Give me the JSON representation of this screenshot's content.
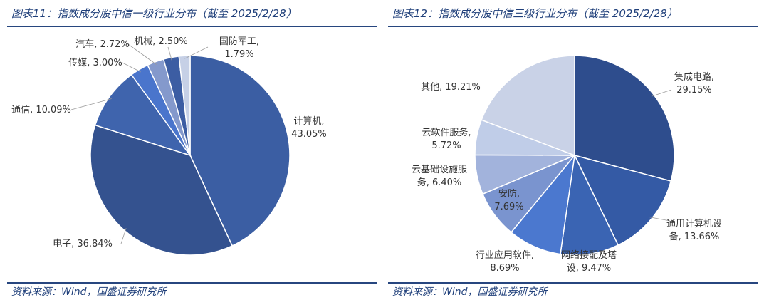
{
  "chart_data": [
    {
      "type": "pie",
      "title": "图表11：指数成分股中信一级行业分布（截至 2025/2/28）",
      "source": "资料来源：Wind，国盛证券研究所",
      "slices": [
        {
          "label": "计算机",
          "value": 43.05,
          "display": "计算机,\n43.05%",
          "color": "#3b5ea3"
        },
        {
          "label": "电子",
          "value": 36.84,
          "display": "电子, 36.84%",
          "color": "#34528f"
        },
        {
          "label": "通信",
          "value": 10.09,
          "display": "通信, 10.09%",
          "color": "#3f64ad"
        },
        {
          "label": "传媒",
          "value": 3.0,
          "display": "传媒, 3.00%",
          "color": "#4a75cc"
        },
        {
          "label": "汽车",
          "value": 2.72,
          "display": "汽车, 2.72%",
          "color": "#8499cc"
        },
        {
          "label": "机械",
          "value": 2.5,
          "display": "机械, 2.50%",
          "color": "#3c5da3"
        },
        {
          "label": "国防军工",
          "value": 1.79,
          "display": "国防军工,\n1.79%",
          "color": "#c6d0e6"
        }
      ]
    },
    {
      "type": "pie",
      "title": "图表12：指数成分股中信三级行业分布（截至 2025/2/28）",
      "source": "资料来源：Wind，国盛证券研究所",
      "slices": [
        {
          "label": "集成电路",
          "value": 29.15,
          "display": "集成电路,\n29.15%",
          "color": "#2e4d8d"
        },
        {
          "label": "通用计算机设备",
          "value": 13.66,
          "display": "通用计算机设\n备, 13.66%",
          "color": "#345aa5"
        },
        {
          "label": "网络接配及塔设",
          "value": 9.47,
          "display": "网络接配及塔\n设, 9.47%",
          "color": "#3a64b3"
        },
        {
          "label": "行业应用软件",
          "value": 8.69,
          "display": "行业应用软件,\n8.69%",
          "color": "#4b78cf"
        },
        {
          "label": "安防",
          "value": 7.69,
          "display": "安防,\n7.69%",
          "color": "#7a94cf"
        },
        {
          "label": "云基础设施服务",
          "value": 6.4,
          "display": "云基础设施服\n务, 6.40%",
          "color": "#a2b3dc"
        },
        {
          "label": "云软件服务",
          "value": 5.72,
          "display": "云软件服务,\n5.72%",
          "color": "#c0cde8"
        },
        {
          "label": "其他",
          "value": 19.21,
          "display": "其他, 19.21%",
          "color": "#c9d2e7"
        }
      ]
    }
  ]
}
